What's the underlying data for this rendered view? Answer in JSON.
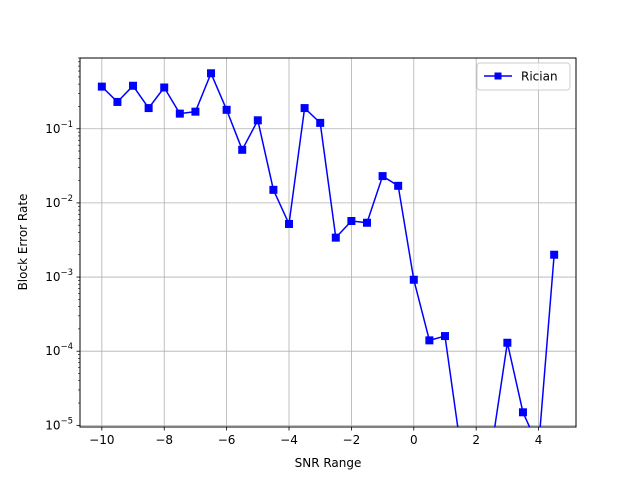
{
  "chart_data": {
    "type": "line",
    "title": "",
    "xlabel": "SNR Range",
    "ylabel": "Block Error Rate",
    "xlim": [
      -10.7,
      5.2
    ],
    "ylim": [
      9.5e-06,
      0.9
    ],
    "yscale": "log",
    "grid": true,
    "legend_position": "top-right",
    "x_ticks": [
      {
        "value": -10,
        "label": "−10"
      },
      {
        "value": -8,
        "label": "−8"
      },
      {
        "value": -6,
        "label": "−6"
      },
      {
        "value": -4,
        "label": "−4"
      },
      {
        "value": -2,
        "label": "−2"
      },
      {
        "value": 0,
        "label": "0"
      },
      {
        "value": 2,
        "label": "2"
      },
      {
        "value": 4,
        "label": "4"
      }
    ],
    "y_ticks": [
      {
        "value": 1e-05,
        "base": "10",
        "exp": "−5"
      },
      {
        "value": 0.0001,
        "base": "10",
        "exp": "−4"
      },
      {
        "value": 0.001,
        "base": "10",
        "exp": "−3"
      },
      {
        "value": 0.01,
        "base": "10",
        "exp": "−2"
      },
      {
        "value": 0.1,
        "base": "10",
        "exp": "−1"
      }
    ],
    "series": [
      {
        "name": "Rician",
        "color": "#0000ff",
        "marker": "square",
        "x": [
          -10,
          -9.5,
          -9,
          -8.5,
          -8,
          -7.5,
          -7,
          -6.5,
          -6,
          -5.5,
          -5,
          -4.5,
          -4,
          -3.5,
          -3,
          -2.5,
          -2,
          -1.5,
          -1,
          -0.5,
          0,
          0.5,
          1,
          1.5,
          2,
          2.5,
          3,
          3.5,
          4,
          4.5
        ],
        "y": [
          0.37,
          0.23,
          0.38,
          0.19,
          0.36,
          0.16,
          0.17,
          0.56,
          0.18,
          0.052,
          0.13,
          0.015,
          0.0052,
          0.19,
          0.12,
          0.0034,
          0.0057,
          0.0054,
          0.023,
          0.017,
          0.00092,
          0.00014,
          0.00016,
          0,
          0,
          0,
          0.00013,
          1.5e-05,
          0,
          0.002
        ]
      }
    ]
  }
}
